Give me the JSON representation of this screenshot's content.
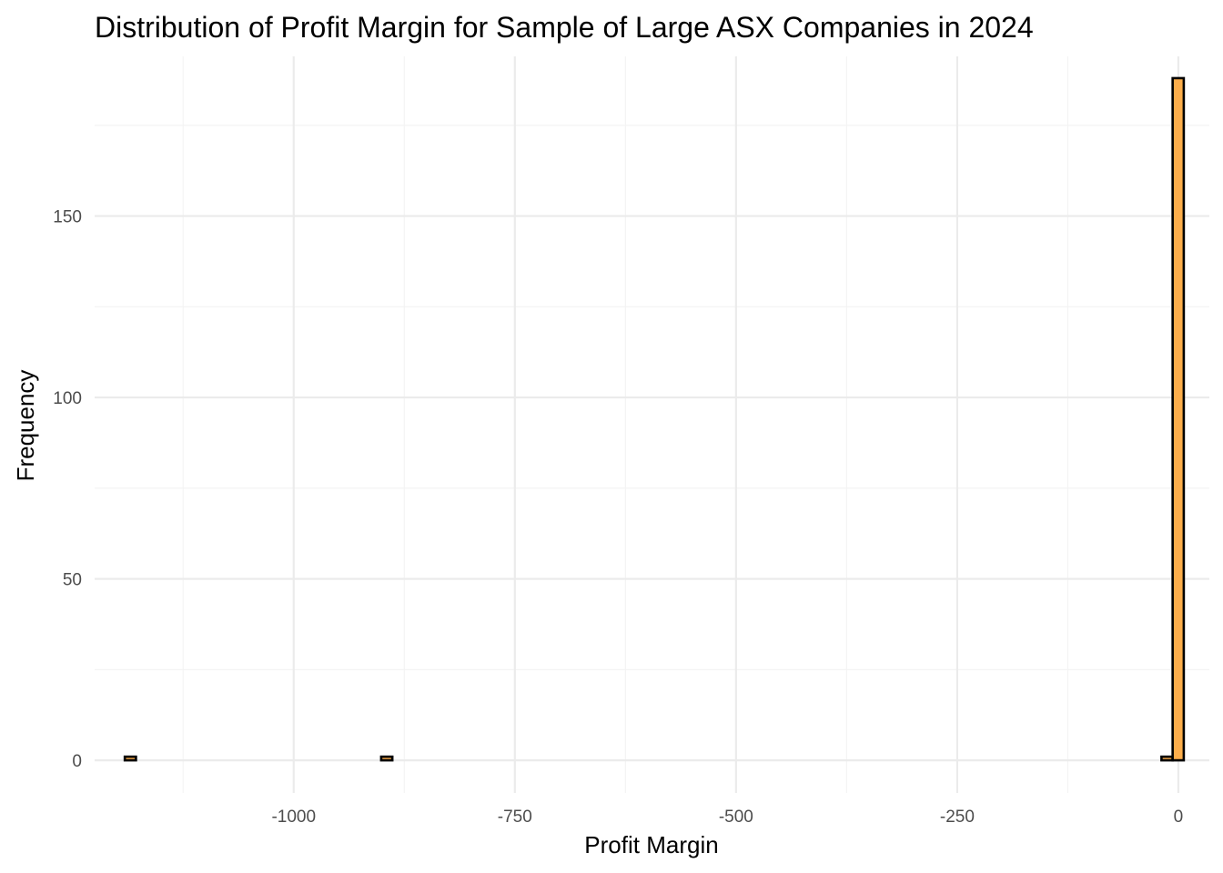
{
  "chart_data": {
    "type": "bar",
    "title": "Distribution of Profit Margin for Sample of Large ASX Companies in 2024",
    "xlabel": "Profit Margin",
    "ylabel": "Frequency",
    "xlim": [
      -1225,
      35
    ],
    "ylim": [
      -9,
      194
    ],
    "x_ticks": [
      -1000,
      -750,
      -500,
      -250,
      0
    ],
    "x_tick_labels": [
      "-1000",
      "-750",
      "-500",
      "-250",
      "0"
    ],
    "y_ticks": [
      0,
      50,
      100,
      150
    ],
    "y_tick_labels": [
      "0",
      "50",
      "100",
      "150"
    ],
    "grid": true,
    "legend": "none",
    "fill_color": "#FDAE4B",
    "outline_color": "#000000",
    "bin_width": 12.6,
    "bins": [
      {
        "x": -1184.6,
        "count": 1
      },
      {
        "x": -897.0,
        "count": 1
      },
      {
        "x": -12.6,
        "count": 1
      },
      {
        "x": 0.0,
        "count": 188
      }
    ]
  }
}
